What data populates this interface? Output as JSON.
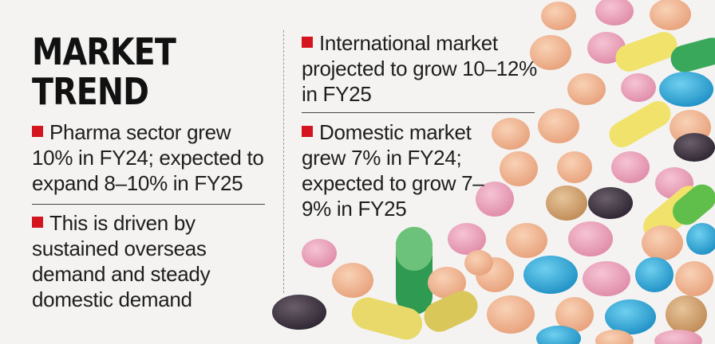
{
  "title": {
    "line1": "MARKET",
    "line2": "TREND"
  },
  "bullets": [
    {
      "text": "Pharma sector grew 10% in FY24; expected to expand 8–10% in FY25"
    },
    {
      "text": "This is driven by sustained overseas demand and steady domestic demand"
    },
    {
      "text": "International market projected to grow 10–12% in FY25"
    },
    {
      "text": "Domestic market grew 7% in FY24; expected to grow 7–9% in FY25"
    }
  ],
  "colors": {
    "bullet_marker": "#d4141e",
    "background": "#f4f3f1",
    "text": "#1e1e1e"
  }
}
